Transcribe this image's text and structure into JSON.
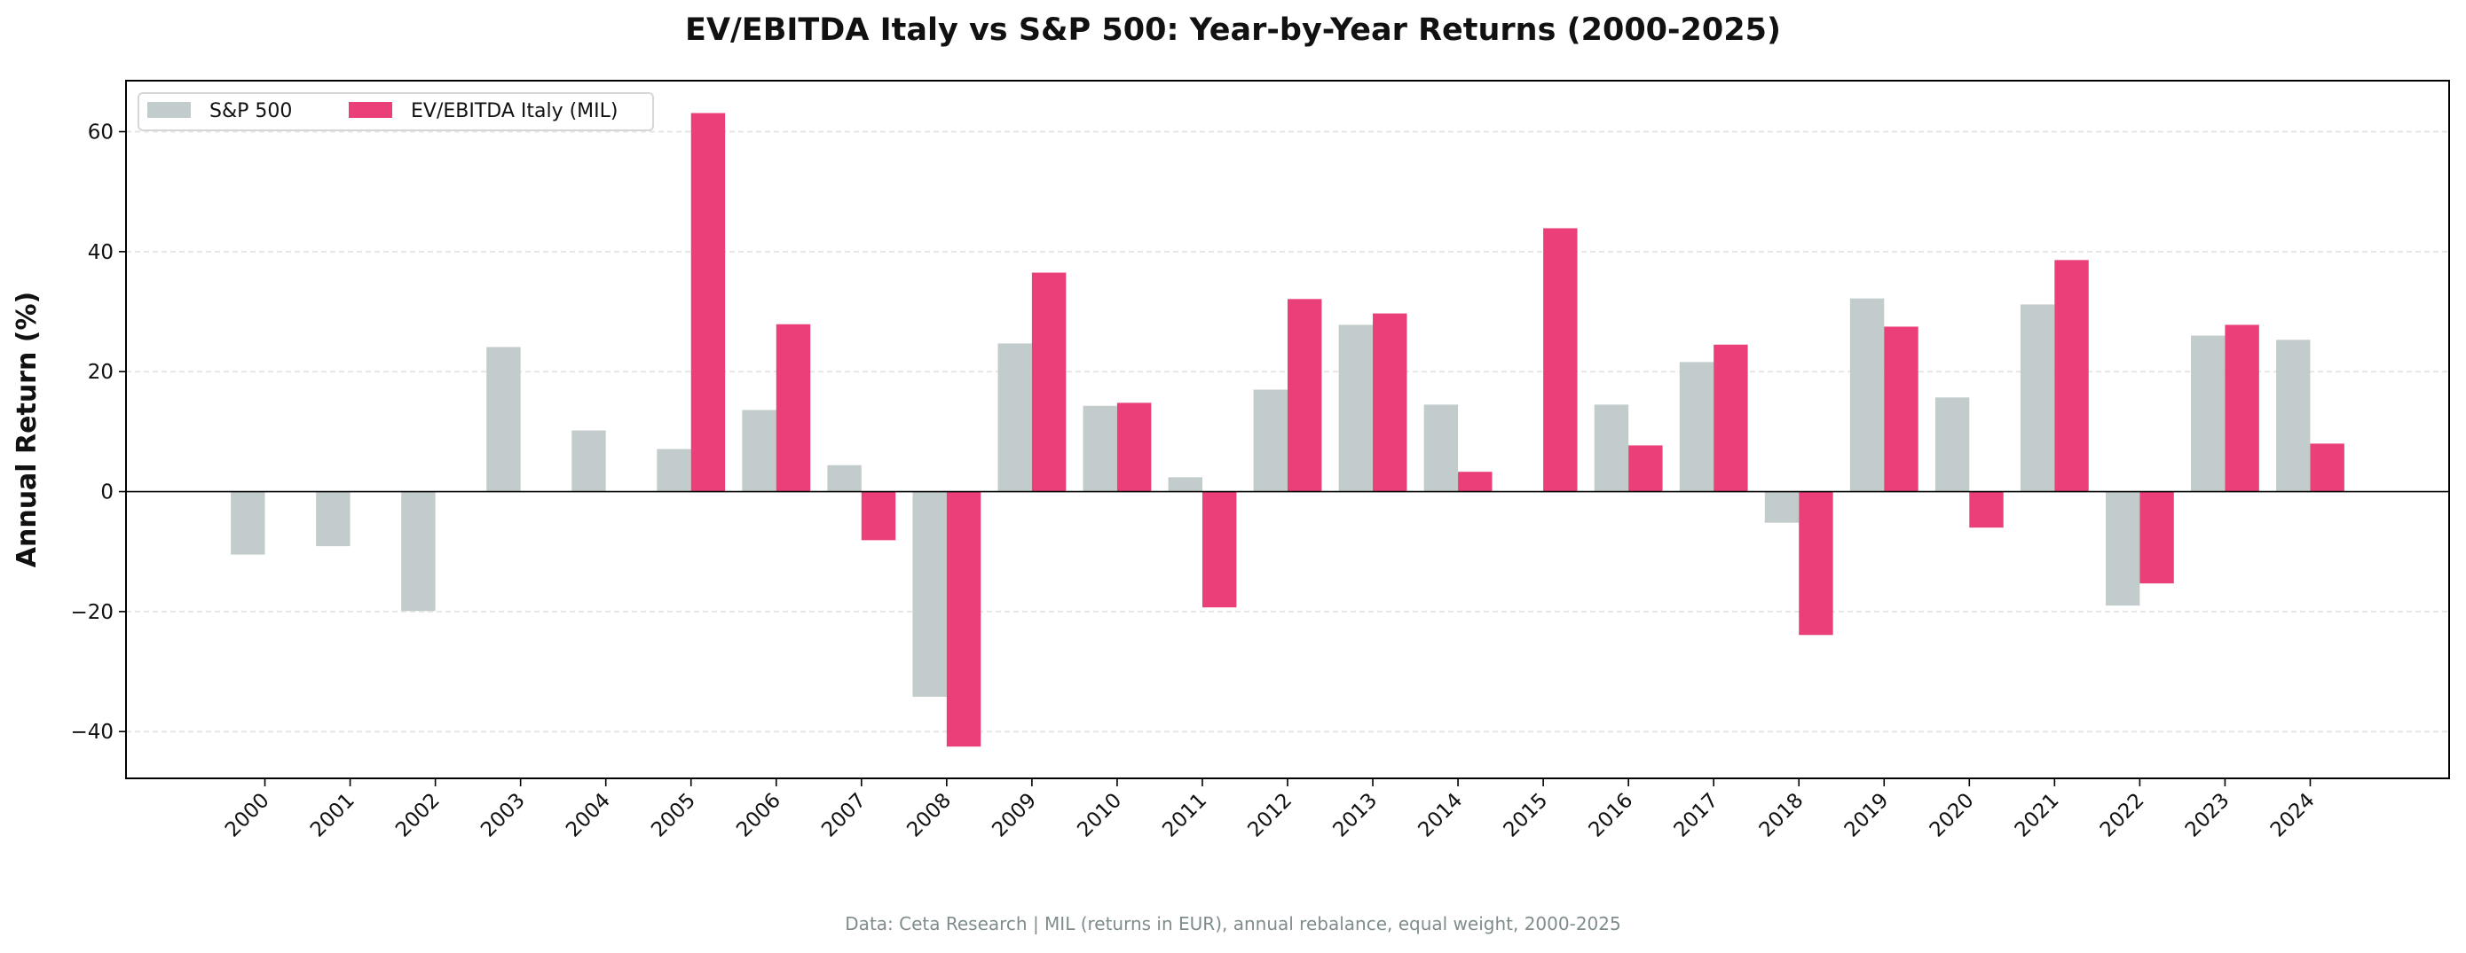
{
  "chart_data": {
    "type": "bar",
    "title": "EV/EBITDA Italy vs S&P 500: Year-by-Year Returns (2000-2025)",
    "xlabel": "",
    "ylabel": "Annual Return (%)",
    "footer": "Data: Ceta Research | MIL (returns in EUR), annual rebalance, equal weight, 2000-2025",
    "categories": [
      "2000",
      "2001",
      "2002",
      "2003",
      "2004",
      "2005",
      "2006",
      "2007",
      "2008",
      "2009",
      "2010",
      "2011",
      "2012",
      "2013",
      "2014",
      "2015",
      "2016",
      "2017",
      "2018",
      "2019",
      "2020",
      "2021",
      "2022",
      "2023",
      "2024"
    ],
    "series": [
      {
        "name": "S&P 500",
        "color": "#c3cccc",
        "values": [
          -10.5,
          -9.1,
          -19.9,
          24.1,
          10.2,
          7.1,
          13.6,
          4.4,
          -34.2,
          24.7,
          14.3,
          2.4,
          17.0,
          27.8,
          14.5,
          0,
          14.5,
          21.6,
          -5.2,
          32.2,
          15.7,
          31.2,
          -19.0,
          26.0,
          25.3
        ]
      },
      {
        "name": "EV/EBITDA Italy (MIL)",
        "color": "#ea3f78",
        "values": [
          0,
          0,
          0,
          0,
          0,
          63.1,
          27.9,
          -8.1,
          -42.5,
          36.5,
          14.8,
          -19.3,
          32.1,
          29.7,
          3.3,
          43.9,
          7.7,
          24.5,
          -23.9,
          27.5,
          -6.0,
          38.6,
          -15.3,
          27.8,
          8.0
        ]
      }
    ],
    "yticks": [
      -40,
      -20,
      0,
      20,
      40,
      60
    ],
    "ylim": [
      -47.8,
      68.5
    ],
    "grid": true,
    "legend": "top-left"
  }
}
